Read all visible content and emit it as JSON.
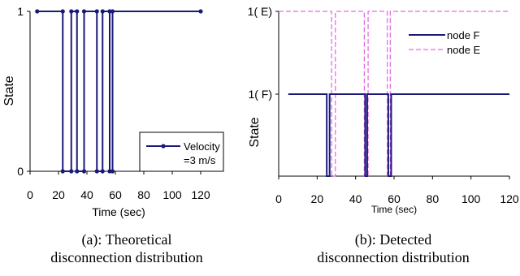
{
  "chart_data": [
    {
      "type": "line",
      "title": "",
      "xlabel": "Time (sec)",
      "ylabel": "State",
      "xlim": [
        0,
        120
      ],
      "ylim": [
        0,
        1
      ],
      "xticks": [
        "0",
        "20",
        "40",
        "60",
        "80",
        "100",
        "120"
      ],
      "yticks": [
        "0",
        "1"
      ],
      "grid": false,
      "legend": "right",
      "series": [
        {
          "name": "Velocity =3 m/s",
          "color": "#1a1a7a",
          "marker": "circle",
          "style": "solid",
          "x": [
            5,
            23,
            23,
            29,
            29,
            33,
            33,
            38,
            38,
            47,
            47,
            51,
            51,
            56,
            56,
            58,
            58,
            120
          ],
          "y": [
            1,
            1,
            0,
            0,
            1,
            1,
            0,
            0,
            1,
            1,
            0,
            0,
            1,
            1,
            0,
            0,
            1,
            1
          ]
        }
      ],
      "legend_labels": [
        "Velocity",
        "=3 m/s"
      ],
      "caption": [
        "(a): Theoretical",
        "disconnection distribution"
      ]
    },
    {
      "type": "line",
      "title": "",
      "xlabel": "Time (sec)",
      "ylabel": "State",
      "xlim": [
        0,
        120
      ],
      "xticks": [
        "0",
        "20",
        "40",
        "60",
        "80",
        "100",
        "120"
      ],
      "yticks": [
        "1( E)",
        "1( F)"
      ],
      "grid": false,
      "legend": "top-right",
      "series": [
        {
          "name": "node F",
          "color": "#1a1a7a",
          "style": "solid",
          "x": [
            5,
            25,
            25,
            26.5,
            26.5,
            45,
            45,
            46,
            46,
            57,
            57,
            58.5,
            58.5,
            120
          ],
          "y": [
            "F",
            "F",
            0,
            0,
            "F",
            "F",
            0,
            0,
            "F",
            "F",
            0,
            0,
            "F",
            "F"
          ]
        },
        {
          "name": "node E",
          "color": "#e040e0",
          "style": "dashed",
          "x": [
            0,
            27.5,
            27.5,
            29.5,
            29.5,
            44.5,
            44.5,
            46.5,
            46.5,
            56.5,
            56.5,
            58,
            58,
            120
          ],
          "y": [
            "E",
            "E",
            0,
            0,
            "E",
            "E",
            0,
            0,
            "E",
            "E",
            0,
            0,
            "E",
            "E"
          ]
        }
      ],
      "caption": [
        "(b): Detected",
        "disconnection distribution"
      ]
    }
  ]
}
